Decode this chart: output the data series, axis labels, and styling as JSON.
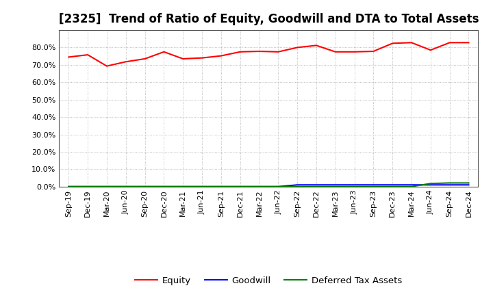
{
  "title": "[2325]  Trend of Ratio of Equity, Goodwill and DTA to Total Assets",
  "x_labels": [
    "Sep-19",
    "Dec-19",
    "Mar-20",
    "Jun-20",
    "Sep-20",
    "Dec-20",
    "Mar-21",
    "Jun-21",
    "Sep-21",
    "Dec-21",
    "Mar-22",
    "Jun-22",
    "Sep-22",
    "Dec-22",
    "Mar-23",
    "Jun-23",
    "Sep-23",
    "Dec-23",
    "Mar-24",
    "Jun-24",
    "Sep-24",
    "Dec-24"
  ],
  "equity": [
    0.745,
    0.758,
    0.693,
    0.718,
    0.735,
    0.775,
    0.735,
    0.74,
    0.752,
    0.775,
    0.778,
    0.775,
    0.8,
    0.812,
    0.775,
    0.775,
    0.778,
    0.824,
    0.828,
    0.785,
    0.828,
    0.828
  ],
  "goodwill": [
    0.0,
    0.0,
    0.0,
    0.0,
    0.0,
    0.0,
    0.0,
    0.0,
    0.0,
    0.0,
    0.0,
    0.0,
    0.01,
    0.01,
    0.01,
    0.01,
    0.01,
    0.01,
    0.01,
    0.01,
    0.01,
    0.01
  ],
  "dta": [
    0.0,
    0.0,
    0.0,
    0.0,
    0.0,
    0.0,
    0.0,
    0.0,
    0.0,
    0.0,
    0.0,
    0.0,
    0.0,
    0.0,
    0.0,
    0.0,
    0.0,
    0.0,
    0.0,
    0.018,
    0.021,
    0.021
  ],
  "equity_color": "#FF0000",
  "goodwill_color": "#0000FF",
  "dta_color": "#008000",
  "background_color": "#FFFFFF",
  "grid_color": "#AAAAAA",
  "ylim": [
    0.0,
    0.9
  ],
  "yticks": [
    0.0,
    0.1,
    0.2,
    0.3,
    0.4,
    0.5,
    0.6,
    0.7,
    0.8
  ],
  "legend_labels": [
    "Equity",
    "Goodwill",
    "Deferred Tax Assets"
  ],
  "title_fontsize": 12,
  "tick_fontsize": 8,
  "legend_fontsize": 9.5
}
